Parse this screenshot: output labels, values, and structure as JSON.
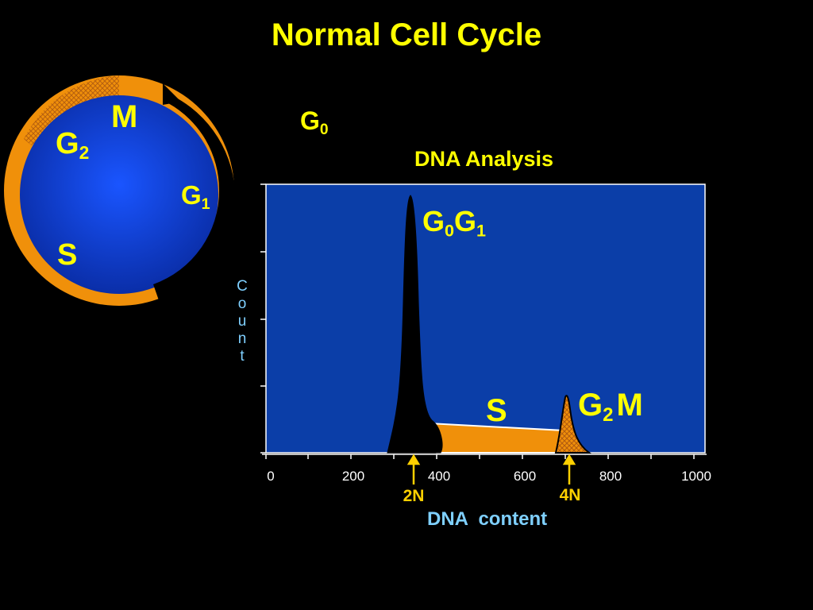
{
  "title": "Normal Cell Cycle",
  "cycle": {
    "M": "M",
    "G2": {
      "base": "G",
      "sub": "2"
    },
    "G1": {
      "base": "G",
      "sub": "1"
    },
    "S": "S"
  },
  "g0": {
    "base": "G",
    "sub": "0"
  },
  "plot": {
    "title": "DNA Analysis",
    "ylabel_letters": [
      "C",
      "o",
      "u",
      "n",
      "t"
    ],
    "xlabel": "DNA  content",
    "x_ticks": [
      "0",
      "200",
      "400",
      "600",
      "800",
      "1000"
    ],
    "markers": {
      "left": "2N",
      "right": "4N"
    },
    "peak_labels": {
      "g0g1": {
        "a": "G",
        "a_sub": "0",
        "b": "G",
        "b_sub": "1"
      },
      "s": "S",
      "g2m": {
        "a": "G",
        "a_sub": "2",
        "b": "M"
      }
    }
  },
  "colors": {
    "background": "#000000",
    "title": "#ffff00",
    "plot_bg": "#0b3ea8",
    "cell": "#1040e0",
    "ring": "#f0900a",
    "label_blue": "#7fd0ff"
  }
}
